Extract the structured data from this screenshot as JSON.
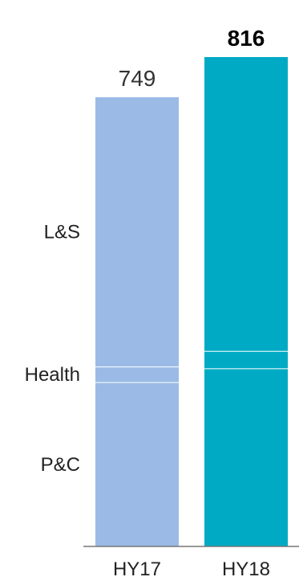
{
  "chart_data": {
    "type": "bar",
    "stacked": true,
    "categories": [
      "HY17",
      "HY18"
    ],
    "series": [
      {
        "name": "P&C",
        "values": [
          274,
          297
        ]
      },
      {
        "name": "Health",
        "values": [
          26,
          29
        ]
      },
      {
        "name": "L&S",
        "values": [
          449,
          490
        ]
      }
    ],
    "totals": [
      "749",
      "816"
    ],
    "ylim": [
      0,
      816
    ],
    "grid": false,
    "bar_colors": [
      "#9bbbe6",
      "#00aac4"
    ],
    "segment_separator_color": "#ffffff"
  }
}
